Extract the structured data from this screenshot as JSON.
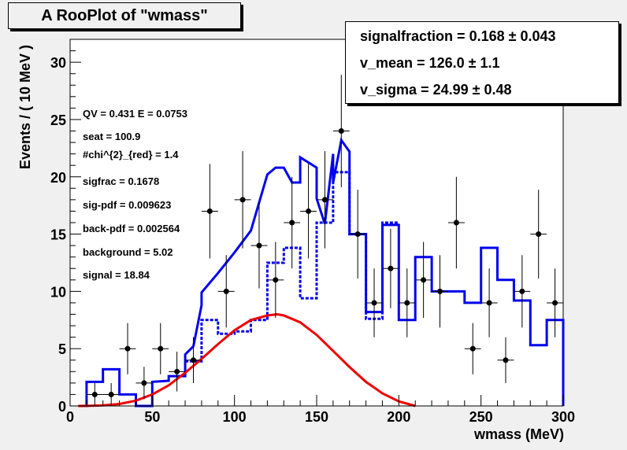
{
  "title": "A RooPlot of \"wmass\"",
  "stats": [
    {
      "label": "signalfraction =",
      "value": "0.168",
      "error": "0.043"
    },
    {
      "label": "v_mean =",
      "value": "126.0",
      "error": "1.1"
    },
    {
      "label": "v_sigma =",
      "value": "24.99",
      "error": "0.48"
    }
  ],
  "notes": [
    "QV = 0.431 E = 0.0753",
    "seat = 100.9",
    "#chi^{2}_{red} = 1.4",
    "sigfrac = 0.1678",
    "sig-pdf = 0.009623",
    "back-pdf = 0.002564",
    "background = 5.02",
    "signal = 18.84"
  ],
  "chart_data": {
    "type": "line",
    "xlabel": "wmass (MeV)",
    "ylabel": "Events / ( 10 MeV )",
    "xlim": [
      0,
      300
    ],
    "ylim": [
      0,
      32
    ],
    "x_ticks": [
      0,
      50,
      100,
      150,
      200,
      250,
      300
    ],
    "y_ticks": [
      0,
      5,
      10,
      15,
      20,
      25,
      30
    ],
    "grid": false,
    "colors": {
      "total": "#0000ee",
      "background": "#0000ee",
      "signal": "#ee0000",
      "data": "#000000"
    },
    "data_points": {
      "x": [
        15,
        25,
        35,
        45,
        55,
        65,
        75,
        85,
        95,
        105,
        115,
        125,
        135,
        145,
        155,
        165,
        175,
        185,
        195,
        205,
        215,
        225,
        235,
        245,
        255,
        265,
        275,
        285,
        295
      ],
      "y": [
        1,
        1,
        5,
        2,
        5,
        3,
        4,
        17,
        10,
        18,
        14,
        11,
        16,
        17,
        18,
        24,
        15,
        9,
        12,
        9,
        11,
        10,
        16,
        5,
        9,
        4,
        10,
        15,
        9
      ]
    },
    "series": [
      {
        "x": [
          5,
          10,
          10,
          20,
          20,
          30,
          30,
          40,
          40,
          50,
          50,
          60,
          60,
          70,
          70,
          75,
          80,
          80,
          90,
          100,
          110,
          120,
          125,
          130,
          135,
          140,
          140,
          150,
          150,
          155,
          160,
          160,
          165,
          170,
          170,
          180,
          180,
          190,
          190,
          200,
          200,
          210,
          210,
          220,
          220,
          240,
          240,
          250,
          250,
          260,
          260,
          270,
          270,
          280,
          280,
          290,
          290,
          300,
          300
        ],
        "y": [
          0,
          0,
          2.1,
          2.1,
          3.2,
          3.2,
          1.0,
          1.0,
          0,
          0,
          2.1,
          2.2,
          2.6,
          2.6,
          4.5,
          5.2,
          8.8,
          9.9,
          11.6,
          13.4,
          15.3,
          20.2,
          20.8,
          20.8,
          19.5,
          19.5,
          21.7,
          20.8,
          18.1,
          15.9,
          22.0,
          19.5,
          23.2,
          22.2,
          15.0,
          15.0,
          8.2,
          8.2,
          15.8,
          15.8,
          7.5,
          7.5,
          13.0,
          13.0,
          10.0,
          10.0,
          9.0,
          9.0,
          13.8,
          13.8,
          11.0,
          11.0,
          9.2,
          9.2,
          5.3,
          5.3,
          7.5,
          7.5,
          0
        ]
      },
      {
        "x": [
          70,
          70,
          80,
          80,
          90,
          90,
          100,
          100,
          110,
          110,
          120,
          120,
          130,
          130,
          140,
          140,
          150,
          150,
          160,
          160,
          170,
          170,
          180,
          180,
          190,
          190,
          200
        ],
        "y": [
          3.9,
          3.9,
          3.9,
          7.5,
          7.5,
          6.3,
          6.3,
          6.5,
          6.5,
          7.5,
          7.5,
          12.5,
          12.5,
          13.8,
          13.8,
          9.4,
          9.4,
          16.0,
          16.0,
          20.4,
          20.4,
          15.0,
          15.0,
          7.6,
          7.6,
          16.0,
          16.0
        ]
      },
      {
        "x": [
          5,
          10,
          20,
          30,
          40,
          50,
          60,
          70,
          80,
          90,
          100,
          110,
          120,
          126,
          130,
          140,
          150,
          160,
          170,
          180,
          190,
          200,
          210
        ],
        "y": [
          0,
          0.01,
          0.05,
          0.17,
          0.46,
          1.0,
          1.8,
          2.9,
          4.1,
          5.4,
          6.6,
          7.5,
          7.9,
          8.0,
          7.9,
          7.3,
          6.2,
          4.8,
          3.4,
          2.1,
          1.1,
          0.4,
          0
        ]
      }
    ]
  }
}
